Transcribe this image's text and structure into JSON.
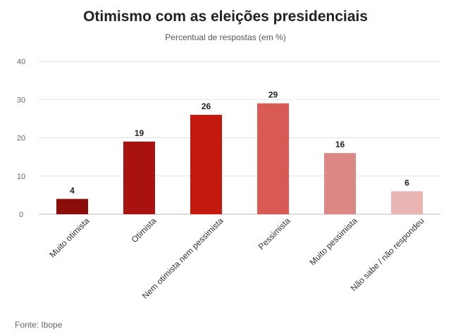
{
  "chart_data": {
    "type": "bar",
    "title": "Otimismo com as eleições presidenciais",
    "subtitle": "Percentual de respostas (em %)",
    "xlabel": "",
    "ylabel": "",
    "ylim": [
      0,
      40
    ],
    "yticks": [
      0,
      10,
      20,
      30,
      40
    ],
    "grid": true,
    "categories": [
      "Muito otimista",
      "Otimista",
      "Nem otimista nem pessimista",
      "Pessimista",
      "Muito pessimista",
      "Não sabe / não respondeu"
    ],
    "values": [
      4,
      19,
      26,
      29,
      16,
      6
    ],
    "colors": [
      "#8b0e0a",
      "#a8130f",
      "#c4190f",
      "#d95a55",
      "#db8885",
      "#e8b5b3"
    ],
    "source": "Fonte: Ibope"
  }
}
